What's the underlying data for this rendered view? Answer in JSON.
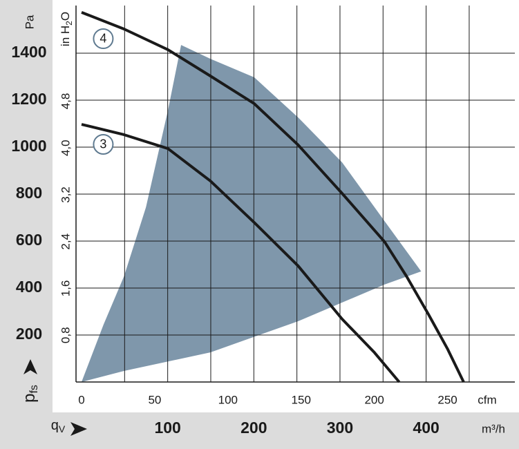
{
  "chart_data": {
    "type": "line",
    "y_label": "Pa",
    "y2_label": {
      "base": "in H",
      "sub": "2",
      "tail": "O"
    },
    "y_title": {
      "base": "p",
      "sub": "fs"
    },
    "x_label": "cfm",
    "x2_title": {
      "base": "q",
      "sub": "V"
    },
    "x2_label": "m³/h",
    "xlim": [
      0,
      296
    ],
    "xticks": [
      0,
      50,
      100,
      150,
      200,
      250
    ],
    "ylim": [
      0,
      1603
    ],
    "yticks": [
      200,
      400,
      600,
      800,
      1000,
      1200,
      1400
    ],
    "y2lim": [
      0,
      6.435
    ],
    "y2ticks": [
      {
        "value": 0.8,
        "label": "0,8"
      },
      {
        "value": 1.6,
        "label": "1,6"
      },
      {
        "value": 2.4,
        "label": "2,4"
      },
      {
        "value": 3.2,
        "label": "3,2"
      },
      {
        "value": 4.0,
        "label": "4,0"
      },
      {
        "value": 4.8,
        "label": "4,8"
      }
    ],
    "x2lim": [
      0,
      503
    ],
    "x2ticks": [
      100,
      200,
      300,
      400
    ],
    "x2_grid": [
      50,
      100,
      150,
      200,
      250,
      300,
      350,
      400,
      450
    ],
    "grid": true,
    "area": {
      "color": "#7f97ab",
      "x": [
        0,
        15,
        29,
        44,
        59,
        68,
        88,
        118,
        148,
        178,
        207,
        232,
        207,
        148,
        88,
        29,
        0
      ],
      "y": [
        0,
        244,
        450,
        744,
        1156,
        1435,
        1376,
        1297,
        1126,
        935,
        685,
        471,
        415,
        259,
        126,
        47,
        0
      ]
    },
    "series": [
      {
        "name": "4",
        "color": "#1a1a1a",
        "x": [
          0,
          29,
          59,
          88,
          118,
          148,
          178,
          207,
          222,
          237,
          250,
          261
        ],
        "values": [
          1574,
          1503,
          1415,
          1303,
          1185,
          1009,
          803,
          597,
          450,
          288,
          141,
          0
        ]
      },
      {
        "name": "3",
        "color": "#1a1a1a",
        "x": [
          0,
          29,
          59,
          88,
          118,
          148,
          178,
          200,
          217
        ],
        "values": [
          1097,
          1053,
          994,
          856,
          679,
          494,
          268,
          126,
          0
        ]
      }
    ]
  }
}
